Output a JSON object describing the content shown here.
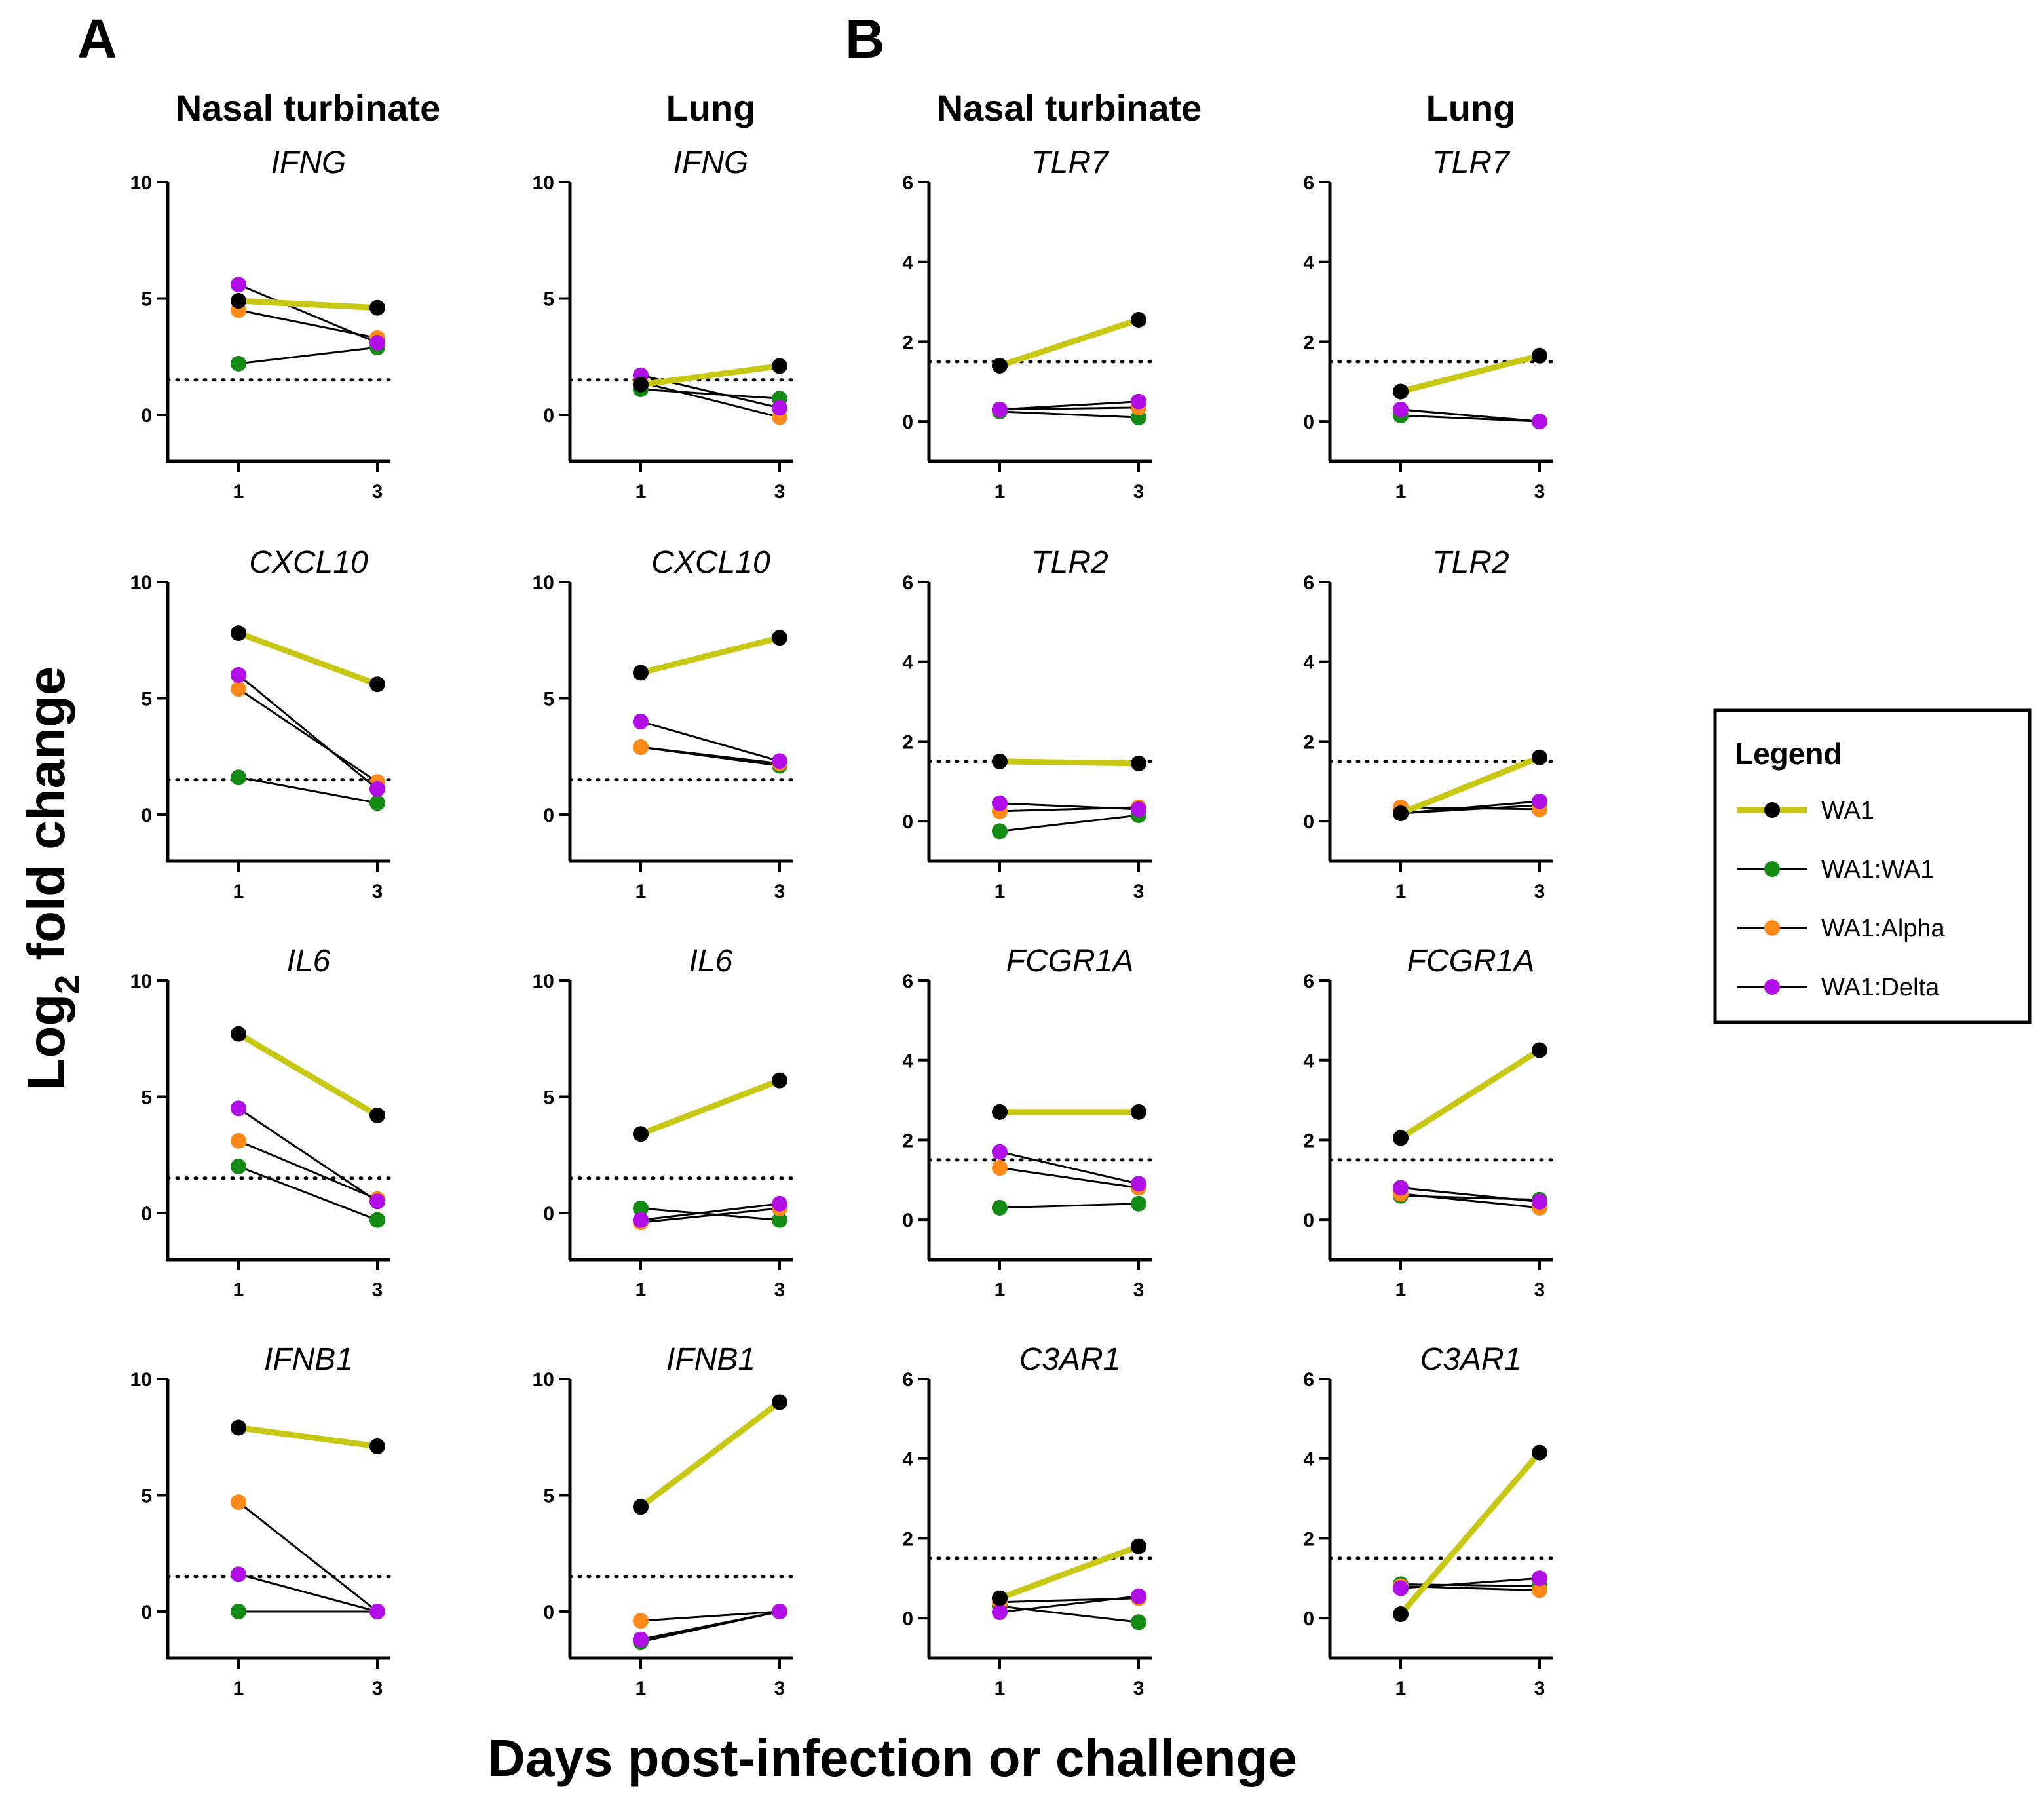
{
  "figure": {
    "panel_letters": [
      "A",
      "B"
    ],
    "column_titles": [
      "Nasal turbinate",
      "Lung",
      "Nasal turbinate",
      "Lung"
    ],
    "y_axis_title": {
      "prefix": "Log",
      "subscript": "2",
      "suffix": " fold change"
    },
    "x_axis_title": "Days post-infection or challenge"
  },
  "legend": {
    "title": "Legend",
    "entries": [
      {
        "label": "WA1",
        "line_color": "#c8c814",
        "marker_color": "#000000",
        "thick": true
      },
      {
        "label": "WA1:WA1",
        "line_color": "#000000",
        "marker_color": "#138a13",
        "thick": false
      },
      {
        "label": "WA1:Alpha",
        "line_color": "#000000",
        "marker_color": "#ff8a1a",
        "thick": false
      },
      {
        "label": "WA1:Delta",
        "line_color": "#000000",
        "marker_color": "#b10de6",
        "thick": false
      }
    ]
  },
  "chart_data": [
    {
      "type": "line",
      "panel": "A",
      "tissue": "Nasal turbinate",
      "title": "IFNG",
      "x": [
        1,
        3
      ],
      "xticks": [
        "1",
        "3"
      ],
      "ylim": [
        -2,
        10
      ],
      "yticks": [
        0,
        5,
        10
      ],
      "threshold": 1.5,
      "series": [
        {
          "name": "WA1:WA1",
          "values": [
            2.2,
            2.9
          ]
        },
        {
          "name": "WA1:Alpha",
          "values": [
            4.5,
            3.3
          ]
        },
        {
          "name": "WA1:Delta",
          "values": [
            5.6,
            3.1
          ]
        },
        {
          "name": "WA1",
          "values": [
            4.9,
            4.6
          ]
        }
      ]
    },
    {
      "type": "line",
      "panel": "A",
      "tissue": "Lung",
      "title": "IFNG",
      "x": [
        1,
        3
      ],
      "xticks": [
        "1",
        "3"
      ],
      "ylim": [
        -2,
        10
      ],
      "yticks": [
        0,
        5,
        10
      ],
      "threshold": 1.5,
      "series": [
        {
          "name": "WA1:WA1",
          "values": [
            1.1,
            0.7
          ]
        },
        {
          "name": "WA1:Alpha",
          "values": [
            1.4,
            -0.1
          ]
        },
        {
          "name": "WA1:Delta",
          "values": [
            1.7,
            0.3
          ]
        },
        {
          "name": "WA1",
          "values": [
            1.3,
            2.1
          ]
        }
      ]
    },
    {
      "type": "line",
      "panel": "B",
      "tissue": "Nasal turbinate",
      "title": "TLR7",
      "x": [
        1,
        3
      ],
      "xticks": [
        "1",
        "3"
      ],
      "ylim": [
        -1,
        6
      ],
      "yticks": [
        0,
        2,
        4,
        6
      ],
      "threshold": 1.5,
      "series": [
        {
          "name": "WA1:WA1",
          "values": [
            0.25,
            0.1
          ]
        },
        {
          "name": "WA1:Alpha",
          "values": [
            0.3,
            0.35
          ]
        },
        {
          "name": "WA1:Delta",
          "values": [
            0.3,
            0.5
          ]
        },
        {
          "name": "WA1",
          "values": [
            1.4,
            2.55
          ]
        }
      ]
    },
    {
      "type": "line",
      "panel": "B",
      "tissue": "Lung",
      "title": "TLR7",
      "x": [
        1,
        3
      ],
      "xticks": [
        "1",
        "3"
      ],
      "ylim": [
        -1,
        6
      ],
      "yticks": [
        0,
        2,
        4,
        6
      ],
      "threshold": 1.5,
      "series": [
        {
          "name": "WA1:WA1",
          "values": [
            0.15,
            0.0
          ]
        },
        {
          "name": "WA1:Alpha",
          "values": [
            0.3,
            0.0
          ]
        },
        {
          "name": "WA1:Delta",
          "values": [
            0.3,
            0.0
          ]
        },
        {
          "name": "WA1",
          "values": [
            0.75,
            1.65
          ]
        }
      ]
    },
    {
      "type": "line",
      "panel": "A",
      "tissue": "Nasal turbinate",
      "title": "CXCL10",
      "x": [
        1,
        3
      ],
      "xticks": [
        "1",
        "3"
      ],
      "ylim": [
        -2,
        10
      ],
      "yticks": [
        0,
        5,
        10
      ],
      "threshold": 1.5,
      "series": [
        {
          "name": "WA1:WA1",
          "values": [
            1.6,
            0.5
          ]
        },
        {
          "name": "WA1:Alpha",
          "values": [
            5.4,
            1.4
          ]
        },
        {
          "name": "WA1:Delta",
          "values": [
            6.0,
            1.1
          ]
        },
        {
          "name": "WA1",
          "values": [
            7.8,
            5.6
          ]
        }
      ]
    },
    {
      "type": "line",
      "panel": "A",
      "tissue": "Lung",
      "title": "CXCL10",
      "x": [
        1,
        3
      ],
      "xticks": [
        "1",
        "3"
      ],
      "ylim": [
        -2,
        10
      ],
      "yticks": [
        0,
        5,
        10
      ],
      "threshold": 1.5,
      "series": [
        {
          "name": "WA1:WA1",
          "values": [
            2.9,
            2.1
          ]
        },
        {
          "name": "WA1:Alpha",
          "values": [
            2.9,
            2.2
          ]
        },
        {
          "name": "WA1:Delta",
          "values": [
            4.0,
            2.3
          ]
        },
        {
          "name": "WA1",
          "values": [
            6.1,
            7.6
          ]
        }
      ]
    },
    {
      "type": "line",
      "panel": "B",
      "tissue": "Nasal turbinate",
      "title": "TLR2",
      "x": [
        1,
        3
      ],
      "xticks": [
        "1",
        "3"
      ],
      "ylim": [
        -1,
        6
      ],
      "yticks": [
        0,
        2,
        4,
        6
      ],
      "threshold": 1.5,
      "series": [
        {
          "name": "WA1:WA1",
          "values": [
            -0.25,
            0.15
          ]
        },
        {
          "name": "WA1:Alpha",
          "values": [
            0.25,
            0.35
          ]
        },
        {
          "name": "WA1:Delta",
          "values": [
            0.45,
            0.3
          ]
        },
        {
          "name": "WA1",
          "values": [
            1.5,
            1.45
          ]
        }
      ]
    },
    {
      "type": "line",
      "panel": "B",
      "tissue": "Lung",
      "title": "TLR2",
      "x": [
        1,
        3
      ],
      "xticks": [
        "1",
        "3"
      ],
      "ylim": [
        -1,
        6
      ],
      "yticks": [
        0,
        2,
        4,
        6
      ],
      "threshold": 1.5,
      "series": [
        {
          "name": "WA1:WA1",
          "values": [
            0.2,
            0.4
          ]
        },
        {
          "name": "WA1:Alpha",
          "values": [
            0.35,
            0.3
          ]
        },
        {
          "name": "WA1:Delta",
          "values": [
            0.2,
            0.5
          ]
        },
        {
          "name": "WA1",
          "values": [
            0.2,
            1.6
          ]
        }
      ]
    },
    {
      "type": "line",
      "panel": "A",
      "tissue": "Nasal turbinate",
      "title": "IL6",
      "x": [
        1,
        3
      ],
      "xticks": [
        "1",
        "3"
      ],
      "ylim": [
        -2,
        10
      ],
      "yticks": [
        0,
        5,
        10
      ],
      "threshold": 1.5,
      "series": [
        {
          "name": "WA1:WA1",
          "values": [
            2.0,
            -0.3
          ]
        },
        {
          "name": "WA1:Alpha",
          "values": [
            3.1,
            0.6
          ]
        },
        {
          "name": "WA1:Delta",
          "values": [
            4.5,
            0.5
          ]
        },
        {
          "name": "WA1",
          "values": [
            7.7,
            4.2
          ]
        }
      ]
    },
    {
      "type": "line",
      "panel": "A",
      "tissue": "Lung",
      "title": "IL6",
      "x": [
        1,
        3
      ],
      "xticks": [
        "1",
        "3"
      ],
      "ylim": [
        -2,
        10
      ],
      "yticks": [
        0,
        5,
        10
      ],
      "threshold": 1.5,
      "series": [
        {
          "name": "WA1:WA1",
          "values": [
            0.2,
            -0.3
          ]
        },
        {
          "name": "WA1:Alpha",
          "values": [
            -0.4,
            0.2
          ]
        },
        {
          "name": "WA1:Delta",
          "values": [
            -0.3,
            0.4
          ]
        },
        {
          "name": "WA1",
          "values": [
            3.4,
            5.7
          ]
        }
      ]
    },
    {
      "type": "line",
      "panel": "B",
      "tissue": "Nasal turbinate",
      "title": "FCGR1A",
      "x": [
        1,
        3
      ],
      "xticks": [
        "1",
        "3"
      ],
      "ylim": [
        -1,
        6
      ],
      "yticks": [
        0,
        2,
        4,
        6
      ],
      "threshold": 1.5,
      "series": [
        {
          "name": "WA1:WA1",
          "values": [
            0.3,
            0.4
          ]
        },
        {
          "name": "WA1:Alpha",
          "values": [
            1.3,
            0.8
          ]
        },
        {
          "name": "WA1:Delta",
          "values": [
            1.7,
            0.9
          ]
        },
        {
          "name": "WA1",
          "values": [
            2.7,
            2.7
          ]
        }
      ]
    },
    {
      "type": "line",
      "panel": "B",
      "tissue": "Lung",
      "title": "FCGR1A",
      "x": [
        1,
        3
      ],
      "xticks": [
        "1",
        "3"
      ],
      "ylim": [
        -1,
        6
      ],
      "yticks": [
        0,
        2,
        4,
        6
      ],
      "threshold": 1.5,
      "series": [
        {
          "name": "WA1:WA1",
          "values": [
            0.6,
            0.5
          ]
        },
        {
          "name": "WA1:Alpha",
          "values": [
            0.65,
            0.3
          ]
        },
        {
          "name": "WA1:Delta",
          "values": [
            0.8,
            0.45
          ]
        },
        {
          "name": "WA1",
          "values": [
            2.05,
            4.25
          ]
        }
      ]
    },
    {
      "type": "line",
      "panel": "A",
      "tissue": "Nasal turbinate",
      "title": "IFNB1",
      "x": [
        1,
        3
      ],
      "xticks": [
        "1",
        "3"
      ],
      "ylim": [
        -2,
        10
      ],
      "yticks": [
        0,
        5,
        10
      ],
      "threshold": 1.5,
      "series": [
        {
          "name": "WA1:WA1",
          "values": [
            0.0,
            0.0
          ]
        },
        {
          "name": "WA1:Alpha",
          "values": [
            4.7,
            0.0
          ]
        },
        {
          "name": "WA1:Delta",
          "values": [
            1.6,
            0.0
          ]
        },
        {
          "name": "WA1",
          "values": [
            7.9,
            7.1
          ]
        }
      ]
    },
    {
      "type": "line",
      "panel": "A",
      "tissue": "Lung",
      "title": "IFNB1",
      "x": [
        1,
        3
      ],
      "xticks": [
        "1",
        "3"
      ],
      "ylim": [
        -2,
        10
      ],
      "yticks": [
        0,
        5,
        10
      ],
      "threshold": 1.5,
      "series": [
        {
          "name": "WA1:WA1",
          "values": [
            -1.3,
            0.0
          ]
        },
        {
          "name": "WA1:Alpha",
          "values": [
            -0.4,
            0.0
          ]
        },
        {
          "name": "WA1:Delta",
          "values": [
            -1.2,
            0.0
          ]
        },
        {
          "name": "WA1",
          "values": [
            4.5,
            9.0
          ]
        }
      ]
    },
    {
      "type": "line",
      "panel": "B",
      "tissue": "Nasal turbinate",
      "title": "C3AR1",
      "x": [
        1,
        3
      ],
      "xticks": [
        "1",
        "3"
      ],
      "ylim": [
        -1,
        6
      ],
      "yticks": [
        0,
        2,
        4,
        6
      ],
      "threshold": 1.5,
      "series": [
        {
          "name": "WA1:WA1",
          "values": [
            0.3,
            -0.1
          ]
        },
        {
          "name": "WA1:Alpha",
          "values": [
            0.4,
            0.5
          ]
        },
        {
          "name": "WA1:Delta",
          "values": [
            0.15,
            0.55
          ]
        },
        {
          "name": "WA1",
          "values": [
            0.5,
            1.8
          ]
        }
      ]
    },
    {
      "type": "line",
      "panel": "B",
      "tissue": "Lung",
      "title": "C3AR1",
      "x": [
        1,
        3
      ],
      "xticks": [
        "1",
        "3"
      ],
      "ylim": [
        -1,
        6
      ],
      "yticks": [
        0,
        2,
        4,
        6
      ],
      "threshold": 1.5,
      "series": [
        {
          "name": "WA1:WA1",
          "values": [
            0.85,
            0.8
          ]
        },
        {
          "name": "WA1:Alpha",
          "values": [
            0.8,
            0.7
          ]
        },
        {
          "name": "WA1:Delta",
          "values": [
            0.75,
            1.0
          ]
        },
        {
          "name": "WA1",
          "values": [
            0.1,
            4.15
          ]
        }
      ]
    }
  ]
}
